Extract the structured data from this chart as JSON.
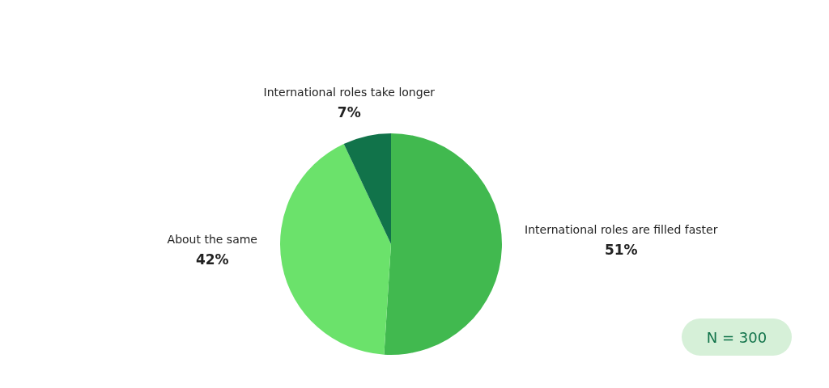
{
  "chart_data": {
    "type": "pie",
    "categories": [
      "International roles are filled faster",
      "About the same",
      "International roles take longer"
    ],
    "values": [
      51,
      42,
      7
    ],
    "colors": [
      "#41b94f",
      "#6be26b",
      "#11734a"
    ],
    "value_labels": [
      "51%",
      "42%",
      "7%"
    ],
    "annotations": [
      "N = 300"
    ]
  }
}
